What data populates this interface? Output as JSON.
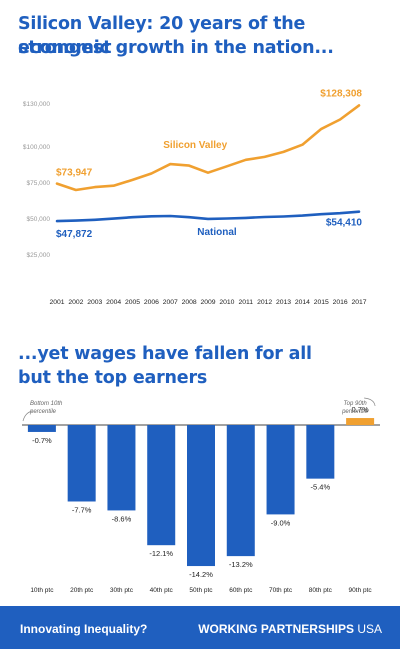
{
  "headline_top": [
    "Silicon Valley: 20 years of the strongest",
    "economic growth in the nation..."
  ],
  "headline_bottom": [
    "...yet wages have fallen for all",
    "but the top earners"
  ],
  "footer": {
    "left": "Innovating Inequality?",
    "brand": "WORKING PARTNERSHIPS",
    "brand_suffix": " USA"
  },
  "colors": {
    "blue": "#1f5fbf",
    "orange": "#f0a030",
    "footer_bg": "#1f5fbf"
  },
  "chart_data": [
    {
      "type": "line",
      "x": [
        2001,
        2002,
        2003,
        2004,
        2005,
        2006,
        2007,
        2008,
        2009,
        2010,
        2011,
        2012,
        2013,
        2014,
        2015,
        2016,
        2017
      ],
      "ylim": [
        25000,
        130000
      ],
      "yticks": [
        "$25,000",
        "$50,000",
        "$75,000",
        "$100,000",
        "$130,000"
      ],
      "ytick_values": [
        25000,
        50000,
        75000,
        100000,
        130000
      ],
      "grid": false,
      "series": [
        {
          "name": "Silicon Valley",
          "color": "#f0a030",
          "values": [
            73947,
            69500,
            71500,
            72500,
            76500,
            81000,
            87500,
            86500,
            81500,
            86000,
            90500,
            92500,
            96000,
            101000,
            112000,
            118500,
            128308
          ],
          "start_label": "$73,947",
          "end_label": "$128,308"
        },
        {
          "name": "National",
          "color": "#1f5fbf",
          "values": [
            47872,
            48200,
            48800,
            49600,
            50600,
            51200,
            51400,
            50600,
            49400,
            49700,
            50100,
            50700,
            51100,
            51700,
            52700,
            53400,
            54410
          ],
          "start_label": "$47,872",
          "end_label": "$54,410"
        }
      ]
    },
    {
      "type": "bar",
      "categories": [
        "10th ptc",
        "20th ptc",
        "30th ptc",
        "40th ptc",
        "50th ptc",
        "60th ptc",
        "70th ptc",
        "80th ptc",
        "90th ptc"
      ],
      "values": [
        -0.7,
        -7.7,
        -8.6,
        -12.1,
        -14.2,
        -13.2,
        -9.0,
        -5.4,
        0.7
      ],
      "value_labels": [
        "-0.7%",
        "-7.7%",
        "-8.6%",
        "-12.1%",
        "-14.2%",
        "-13.2%",
        "-9.0%",
        "-5.4%",
        "0.7%"
      ],
      "ylim": [
        -15,
        1
      ],
      "bar_colors": [
        "#1f5fbf",
        "#1f5fbf",
        "#1f5fbf",
        "#1f5fbf",
        "#1f5fbf",
        "#1f5fbf",
        "#1f5fbf",
        "#1f5fbf",
        "#f0a030"
      ],
      "annotations": [
        {
          "text": [
            "Bottom 10th",
            "percentile"
          ],
          "category": "10th ptc"
        },
        {
          "text": [
            "Top 90th",
            "percentile"
          ],
          "category": "90th ptc"
        }
      ]
    }
  ]
}
